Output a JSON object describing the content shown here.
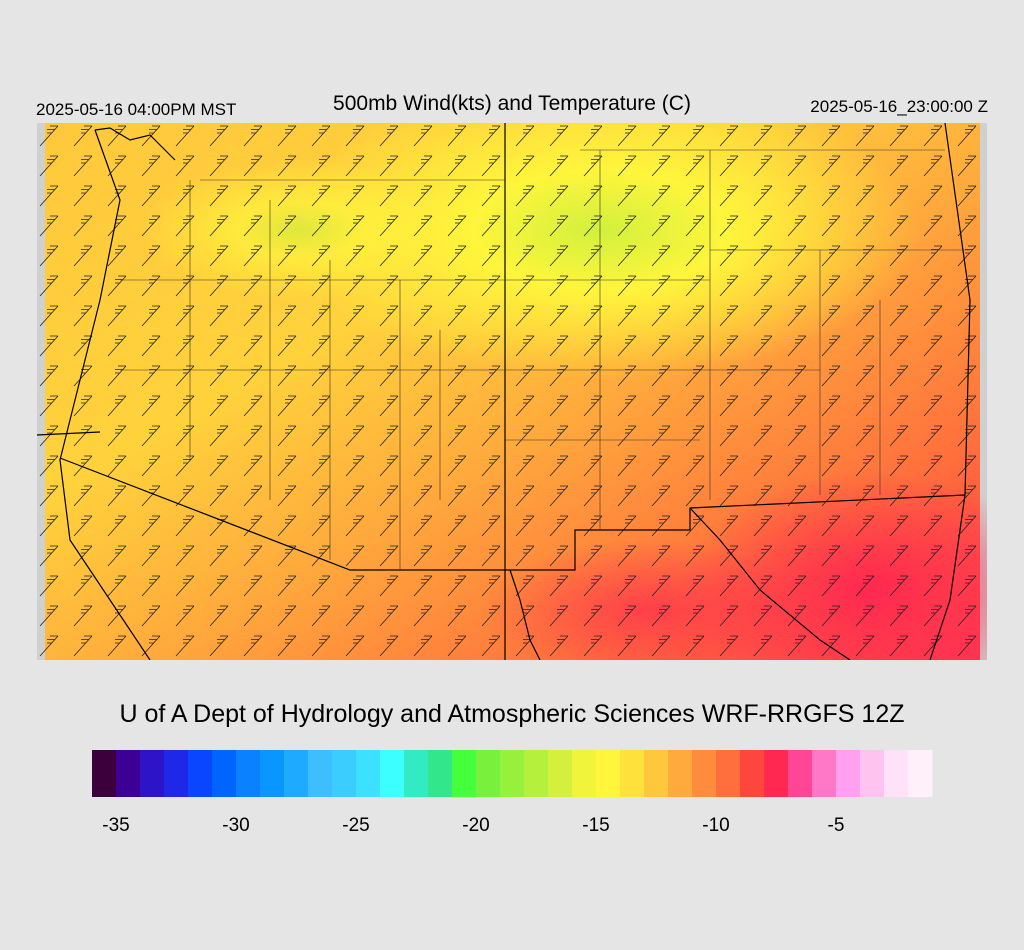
{
  "header": {
    "title": "500mb Wind(kts) and Temperature (C)",
    "local_time": "2025-05-16 04:00PM MST",
    "valid_time": "2025-05-16_23:00:00 Z"
  },
  "credit": "U of A Dept of Hydrology and Atmospheric Sciences WRF-RRGFS 12Z",
  "colorbar": {
    "lim": [
      -36,
      -1
    ],
    "ticks": [
      -35,
      -30,
      -25,
      -20,
      -15,
      -10,
      -5
    ],
    "colors": [
      "#3c003c",
      "#3c0096",
      "#2d14c8",
      "#1e28e6",
      "#0a46ff",
      "#0064ff",
      "#0a82ff",
      "#0a96ff",
      "#1eaaff",
      "#3cbeff",
      "#3ccdff",
      "#3ce1ff",
      "#3cffff",
      "#32ebc3",
      "#32e68c",
      "#46ff3c",
      "#78f03c",
      "#96f03c",
      "#b4f03c",
      "#d2f03c",
      "#f0f53c",
      "#fff53c",
      "#ffe13c",
      "#ffc83c",
      "#ffaa3c",
      "#ff8c3c",
      "#ff6e3c",
      "#ff463c",
      "#ff2850",
      "#ff4696",
      "#ff78c8",
      "#ffa0f0",
      "#ffc3f0",
      "#ffe1f8",
      "#fff0fa"
    ]
  }
}
